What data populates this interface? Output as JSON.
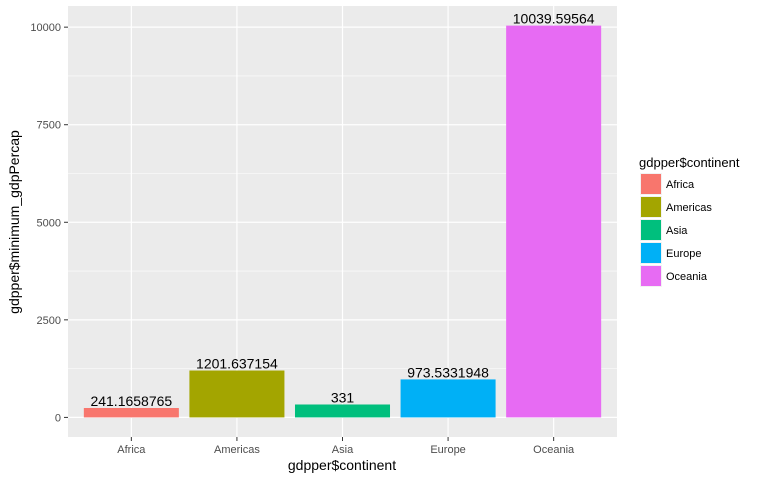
{
  "chart_data": {
    "type": "bar",
    "categories": [
      "Africa",
      "Americas",
      "Asia",
      "Europe",
      "Oceania"
    ],
    "values": [
      241.1658765,
      1201.637154,
      331,
      973.5331948,
      10039.59564
    ],
    "data_labels": [
      "241.1658765",
      "1201.637154",
      "331",
      "973.5331948",
      "10039.59564"
    ],
    "colors": [
      "#F8766D",
      "#A3A500",
      "#00BF7D",
      "#00B0F6",
      "#E76BF3"
    ],
    "xlabel": "gdpper$continent",
    "ylabel": "gdpper$minimum_gdpPercap",
    "yticks": [
      0,
      2500,
      5000,
      7500,
      10000
    ],
    "ylim": [
      -502,
      10542
    ],
    "grid": true,
    "legend": {
      "title": "gdpper$continent",
      "entries": [
        "Africa",
        "Americas",
        "Asia",
        "Europe",
        "Oceania"
      ],
      "placement": "right"
    },
    "panel_background": "#EBEBEB",
    "grid_color": "#FFFFFF"
  }
}
